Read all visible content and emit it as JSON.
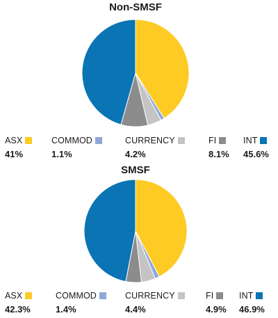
{
  "chart_data": [
    {
      "type": "pie",
      "title": "Non-SMSF",
      "slices": [
        {
          "label": "ASX",
          "value": 41,
          "value_label": "41%",
          "color": "#FDCB24"
        },
        {
          "label": "COMMOD",
          "value": 1.1,
          "value_label": "1.1%",
          "color": "#8FA8D8"
        },
        {
          "label": "CURRENCY",
          "value": 4.2,
          "value_label": "4.2%",
          "color": "#C4C4C4"
        },
        {
          "label": "FI",
          "value": 8.1,
          "value_label": "8.1%",
          "color": "#8C8C8C"
        },
        {
          "label": "INT",
          "value": 45.6,
          "value_label": "45.6%",
          "color": "#0A74B5"
        }
      ],
      "legend_placement": "bottom"
    },
    {
      "type": "pie",
      "title": "SMSF",
      "slices": [
        {
          "label": "ASX",
          "value": 42.3,
          "value_label": "42.3%",
          "color": "#FDCB24"
        },
        {
          "label": "COMMOD",
          "value": 1.4,
          "value_label": "1.4%",
          "color": "#8FA8D8"
        },
        {
          "label": "CURRENCY",
          "value": 4.4,
          "value_label": "4.4%",
          "color": "#C4C4C4"
        },
        {
          "label": "FI",
          "value": 4.9,
          "value_label": "4.9%",
          "color": "#8C8C8C"
        },
        {
          "label": "INT",
          "value": 46.9,
          "value_label": "46.9%",
          "color": "#0A74B5"
        }
      ],
      "legend_placement": "bottom"
    }
  ]
}
